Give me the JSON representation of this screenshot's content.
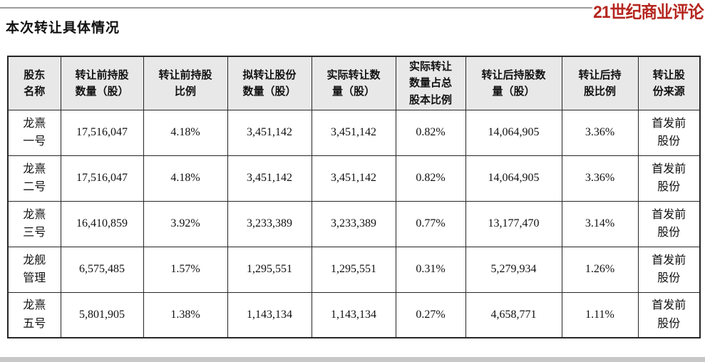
{
  "page": {
    "title": "本次转让具体情况",
    "publication": "21世纪商业评论"
  },
  "colors": {
    "logo_red": "#b5261f",
    "header_bg": "#e8e8e8",
    "table_border": "#262626",
    "top_rule_gray": "#9c9c9c",
    "bottom_bar_gray": "#c8c8c8"
  },
  "table": {
    "headers": [
      "股东\n名称",
      "转让前持股\n数量（股）",
      "转让前持股\n比例",
      "拟转让股份\n数量（股）",
      "实际转让数\n量（股）",
      "实际转让\n数量占总\n股本比例",
      "转让后持股数\n量（股）",
      "转让后持\n股比例",
      "转让股\n份来源"
    ],
    "rows": [
      [
        "龙熹\n一号",
        "17,516,047",
        "4.18%",
        "3,451,142",
        "3,451,142",
        "0.82%",
        "14,064,905",
        "3.36%",
        "首发前\n股份"
      ],
      [
        "龙熹\n二号",
        "17,516,047",
        "4.18%",
        "3,451,142",
        "3,451,142",
        "0.82%",
        "14,064,905",
        "3.36%",
        "首发前\n股份"
      ],
      [
        "龙熹\n三号",
        "16,410,859",
        "3.92%",
        "3,233,389",
        "3,233,389",
        "0.77%",
        "13,177,470",
        "3.14%",
        "首发前\n股份"
      ],
      [
        "龙舰\n管理",
        "6,575,485",
        "1.57%",
        "1,295,551",
        "1,295,551",
        "0.31%",
        "5,279,934",
        "1.26%",
        "首发前\n股份"
      ],
      [
        "龙熹\n五号",
        "5,801,905",
        "1.38%",
        "1,143,134",
        "1,143,134",
        "0.27%",
        "4,658,771",
        "1.11%",
        "首发前\n股份"
      ]
    ]
  }
}
